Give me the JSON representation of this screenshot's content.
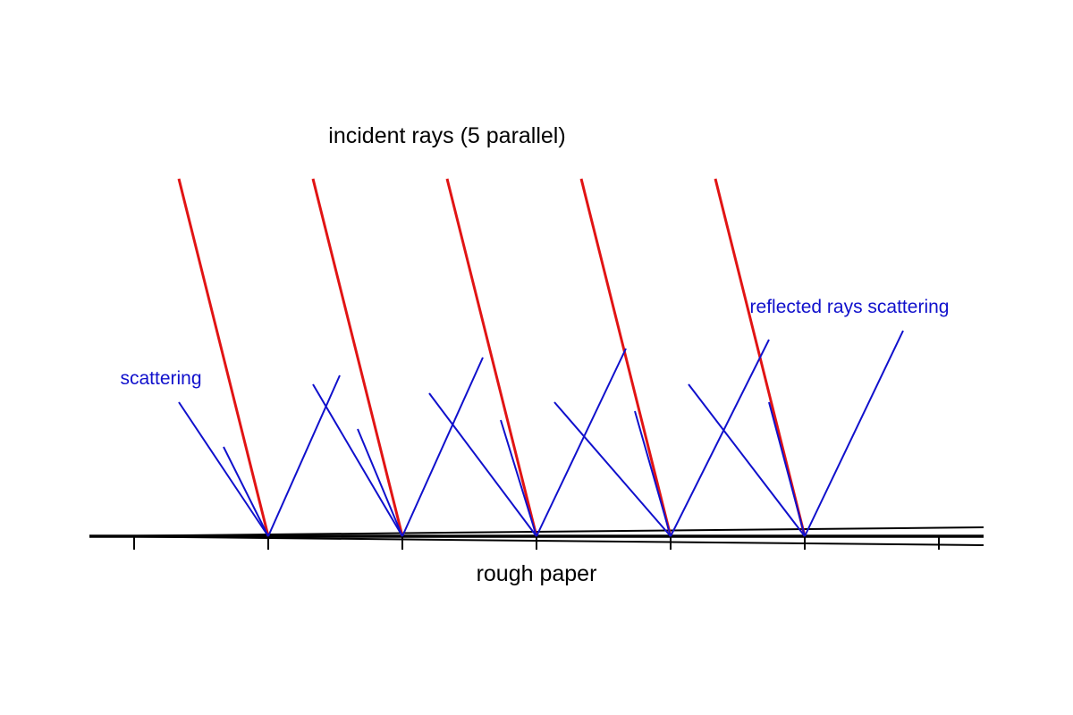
{
  "labels": {
    "incident": "incident rays (5 parallel)",
    "scattering": "scattering",
    "reflected": "reflected rays scattering",
    "surface": "rough paper"
  },
  "colors": {
    "incident_ray": "#e11414",
    "reflected_ray": "#1010cc",
    "surface": "#000000",
    "label_blue": "#1010cc"
  },
  "incident_ray_count": 5,
  "surface_tick_count": 7
}
